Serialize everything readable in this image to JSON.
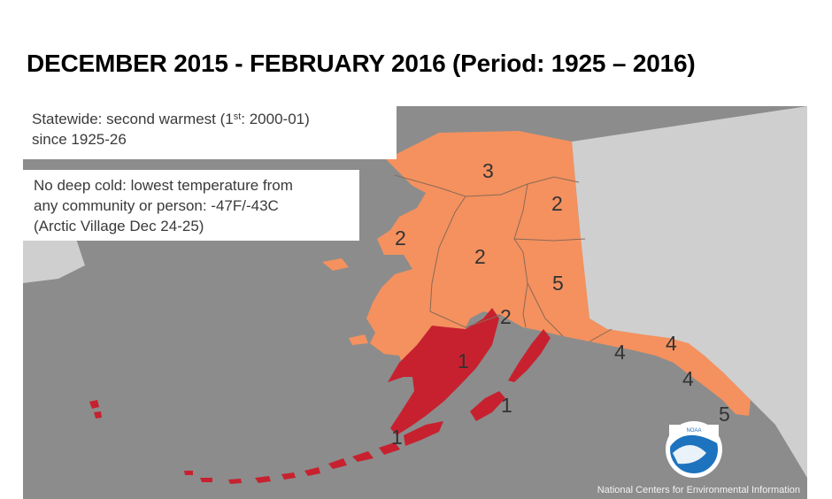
{
  "title": "DECEMBER 2015 - FEBRUARY 2016 (Period: 1925 – 2016)",
  "notes": {
    "statewide_line1_a": "Statewide: second warmest (1",
    "statewide_line1_sup": "st",
    "statewide_line1_b": ": 2000-01)",
    "statewide_line2": "since 1925-26",
    "cold_line1": "No deep cold: lowest temperature from",
    "cold_line2": "any community or person: -47F/-43C",
    "cold_line3": "(Arctic Village Dec 24-25)"
  },
  "region_ranks": {
    "north_slope": "3",
    "northeast_interior": "2",
    "west_coast": "2",
    "central_interior": "2",
    "eastern_interior": "5",
    "cook_inlet": "2",
    "southwest": "1",
    "kodiak": "1",
    "alaska_peninsula": "1",
    "northeast_gulf": "4",
    "north_panhandle": "4",
    "central_panhandle": "4",
    "south_panhandle": "5"
  },
  "credit": "National Centers for Environmental Information",
  "logo_text": "NOAA",
  "colors": {
    "ocean": "#8c8c8c",
    "land_outside": "#cfcfcf",
    "rank_warm": "#f4915f",
    "rank_warmest": "#c7212f"
  }
}
